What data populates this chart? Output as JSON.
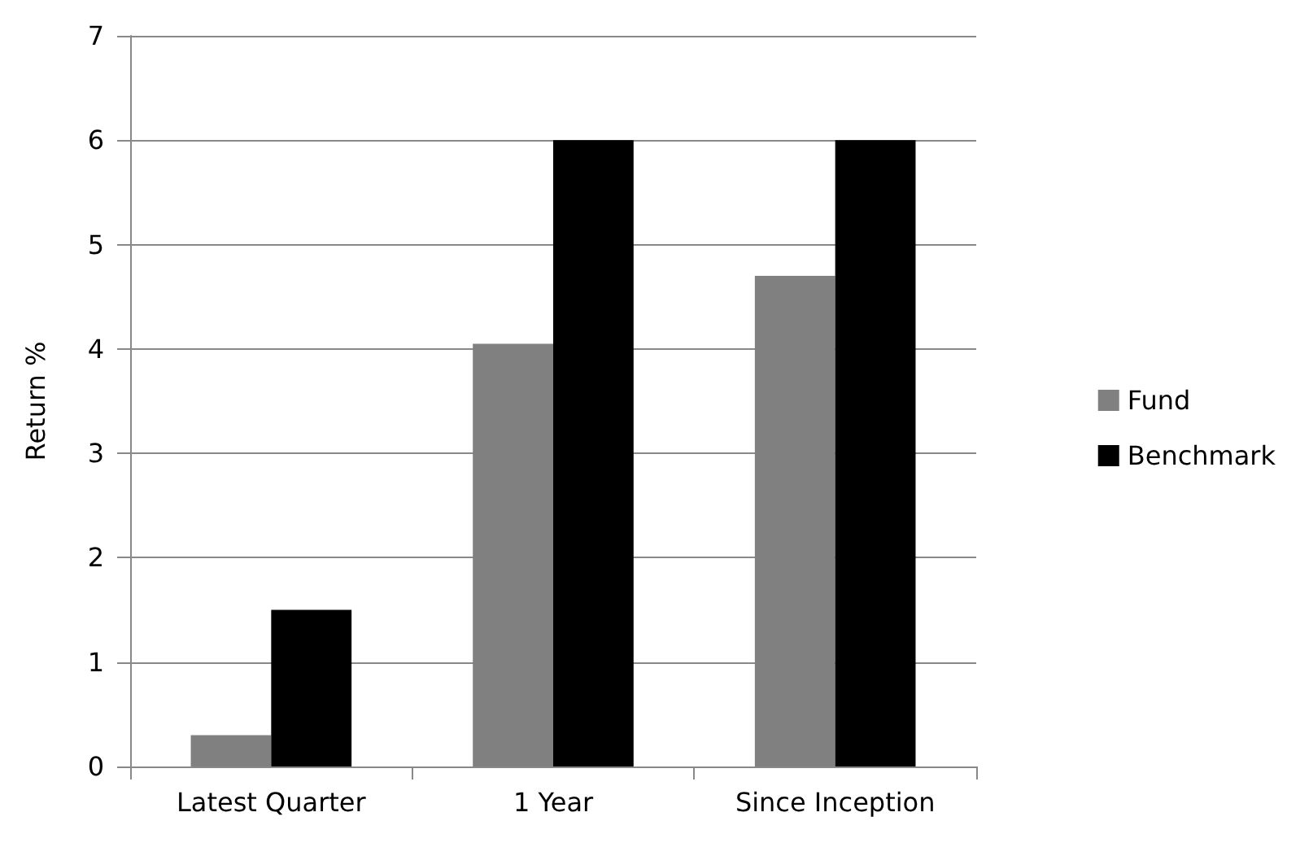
{
  "chart_data": {
    "type": "bar",
    "ylabel": "Return %",
    "categories": [
      "Latest Quarter",
      "1 Year",
      "Since Inception"
    ],
    "series": [
      {
        "name": "Fund",
        "color": "#808080",
        "values": [
          0.3,
          4.05,
          4.7
        ]
      },
      {
        "name": "Benchmark",
        "color": "#000000",
        "values": [
          1.5,
          6,
          6
        ]
      }
    ],
    "ylim": [
      0,
      7
    ],
    "yticks": [
      0,
      1,
      2,
      3,
      4,
      5,
      6,
      7
    ],
    "grid": "y",
    "legend": "right"
  }
}
